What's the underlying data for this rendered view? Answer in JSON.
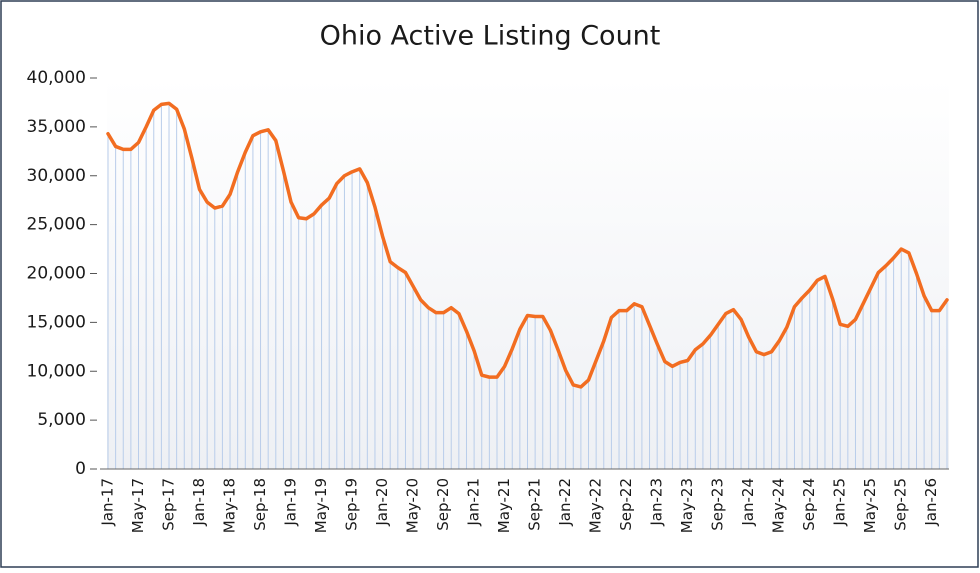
{
  "chart_data": {
    "type": "line",
    "title": "Ohio Active Listing Count",
    "categories": [
      "Jan-17",
      null,
      null,
      null,
      "May-17",
      null,
      null,
      null,
      "Sep-17",
      null,
      null,
      null,
      "Jan-18",
      null,
      null,
      null,
      "May-18",
      null,
      null,
      null,
      "Sep-18",
      null,
      null,
      null,
      "Jan-19",
      null,
      null,
      null,
      "May-19",
      null,
      null,
      null,
      "Sep-19",
      null,
      null,
      null,
      "Jan-20",
      null,
      null,
      null,
      "May-20",
      null,
      null,
      null,
      "Sep-20",
      null,
      null,
      null,
      "Jan-21",
      null,
      null,
      null,
      "May-21",
      null,
      null,
      null,
      "Sep-21",
      null,
      null,
      null,
      "Jan-22",
      null,
      null,
      null,
      "May-22",
      null,
      null,
      null,
      "Sep-22",
      null,
      null,
      null,
      "Jan-23",
      null,
      null,
      null,
      "May-23",
      null,
      null,
      null,
      "Sep-23",
      null,
      null,
      null,
      "Jan-24",
      null,
      null,
      null,
      "May-24",
      null,
      null,
      null,
      "Sep-24",
      null,
      null,
      null,
      "Jan-25",
      null,
      null,
      null,
      "May-25",
      null,
      null,
      null,
      "Sep-25",
      null,
      null,
      null,
      "Jan-26",
      null,
      null
    ],
    "series": [
      {
        "name": "Ohio Active Listing Count",
        "color": "#f26d21",
        "area_color": "#b9cdea",
        "values": [
          34300,
          33000,
          32700,
          32700,
          33400,
          35000,
          36700,
          37300,
          37400,
          36800,
          34800,
          31800,
          28600,
          27300,
          26700,
          26900,
          28100,
          30400,
          32400,
          34100,
          34500,
          34700,
          33600,
          30500,
          27300,
          25700,
          25600,
          26100,
          27000,
          27700,
          29200,
          30000,
          30400,
          30700,
          29300,
          26800,
          23800,
          21200,
          20600,
          20100,
          18700,
          17300,
          16500,
          16000,
          16000,
          16500,
          15900,
          14100,
          12100,
          9600,
          9400,
          9400,
          10500,
          12300,
          14300,
          15700,
          15600,
          15600,
          14200,
          12200,
          10100,
          8600,
          8400,
          9100,
          11100,
          13100,
          15500,
          16200,
          16200,
          16900,
          16600,
          14700,
          12800,
          11000,
          10500,
          10900,
          11100,
          12200,
          12800,
          13700,
          14800,
          15900,
          16300,
          15300,
          13500,
          12000,
          11700,
          12000,
          13100,
          14500,
          16600,
          17500,
          18300,
          19300,
          19700,
          17400,
          14800,
          14600,
          15300,
          16900,
          18500,
          20100,
          20800,
          21600,
          22500,
          22100,
          20000,
          17700,
          16200,
          16200,
          17300
        ]
      }
    ],
    "ylim": [
      0,
      40000
    ],
    "yticks": [
      0,
      {
        "value": 5000,
        "label": "5,000"
      },
      {
        "value": 10000,
        "label": "10,000"
      },
      {
        "value": 15000,
        "label": "15,000"
      },
      {
        "value": 20000,
        "label": "20,000"
      },
      {
        "value": 25000,
        "label": "25,000"
      },
      {
        "value": 30000,
        "label": "30,000"
      },
      {
        "value": 35000,
        "label": "35,000"
      },
      {
        "value": 40000,
        "label": "40,000"
      }
    ],
    "grid": false
  }
}
